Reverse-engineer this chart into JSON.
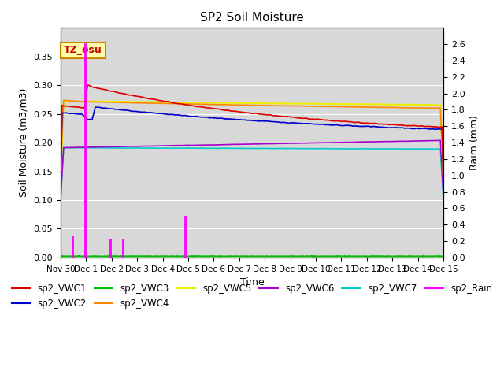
{
  "title": "SP2 Soil Moisture",
  "xlabel": "Time",
  "ylabel_left": "Soil Moisture (m3/m3)",
  "ylabel_right": "Raim (mm)",
  "ylim_left": [
    0,
    0.4
  ],
  "ylim_right": [
    0,
    2.8
  ],
  "xtick_labels": [
    "Nov 30",
    "Dec 1",
    "Dec 2",
    "Dec 3",
    "Dec 4",
    "Dec 5",
    "Dec 6",
    "Dec 7",
    "Dec 8",
    "Dec 9",
    "Dec 10",
    "Dec 11",
    "Dec 12",
    "Dec 13",
    "Dec 14",
    "Dec 15"
  ],
  "yticks_left": [
    0.0,
    0.05,
    0.1,
    0.15,
    0.2,
    0.25,
    0.3,
    0.35
  ],
  "yticks_right": [
    0.0,
    0.2,
    0.4,
    0.6,
    0.8,
    1.0,
    1.2,
    1.4,
    1.6,
    1.8,
    2.0,
    2.2,
    2.4,
    2.6
  ],
  "bg_color": "#d8d8d8",
  "annotation_text": "TZ_osu",
  "colors": {
    "sp2_VWC1": "#dd0000",
    "sp2_VWC2": "#0000cc",
    "sp2_VWC3": "#00bb00",
    "sp2_VWC4": "#ff8800",
    "sp2_VWC5": "#eeee00",
    "sp2_VWC6": "#aa00cc",
    "sp2_VWC7": "#00cccc",
    "sp2_Rain": "#ff00ff"
  },
  "rain_t": [
    0.48,
    0.95,
    1.95,
    2.45,
    4.88
  ],
  "rain_v": [
    0.25,
    2.6,
    0.22,
    0.22,
    0.5
  ]
}
